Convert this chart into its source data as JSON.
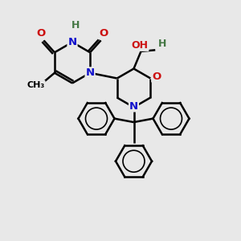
{
  "bg_color": "#e8e8e8",
  "atom_colors": {
    "C": "#000000",
    "N": "#1010cc",
    "O": "#cc1010",
    "H": "#447744"
  },
  "bond_color": "#000000",
  "bond_width": 1.8,
  "figsize": [
    3.0,
    3.0
  ],
  "dpi": 100,
  "xlim": [
    0,
    10
  ],
  "ylim": [
    0,
    10
  ]
}
